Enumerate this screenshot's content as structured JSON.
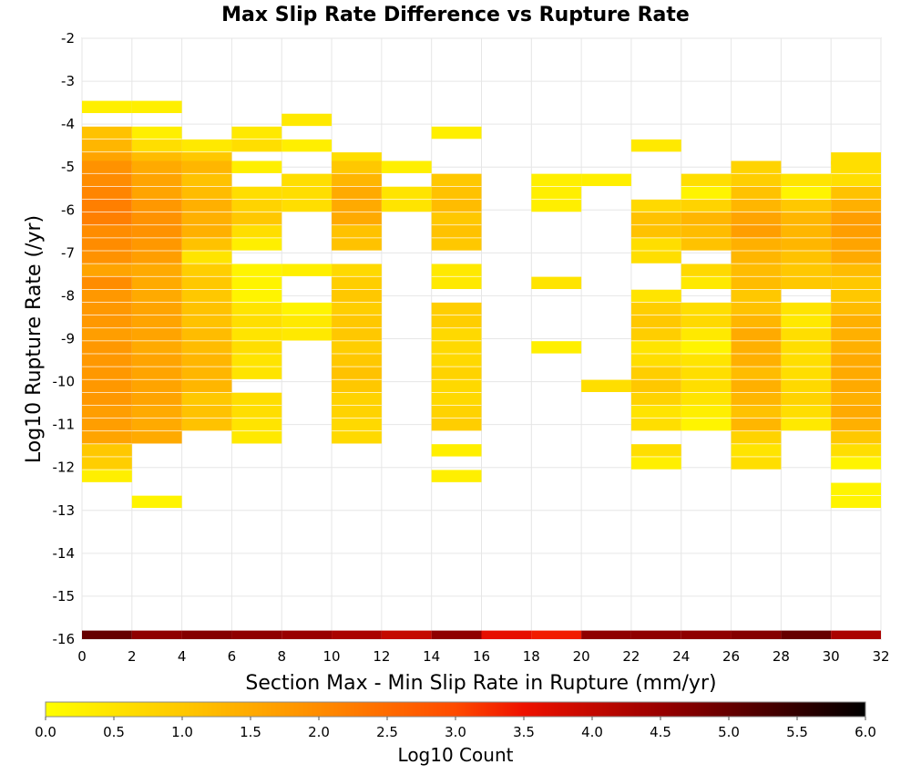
{
  "chart_data": {
    "type": "heatmap",
    "title": "Max Slip Rate Difference vs Rupture Rate",
    "xlabel": "Section Max - Min Slip Rate in Rupture (mm/yr)",
    "ylabel": "Log10 Rupture Rate (/yr)",
    "xlim": [
      0,
      32
    ],
    "ylim": [
      -16,
      -2
    ],
    "x_ticks": [
      0,
      2,
      4,
      6,
      8,
      10,
      12,
      14,
      16,
      18,
      20,
      22,
      24,
      26,
      28,
      30,
      32
    ],
    "y_ticks": [
      -2,
      -3,
      -4,
      -5,
      -6,
      -7,
      -8,
      -9,
      -10,
      -11,
      -12,
      -13,
      -14,
      -15,
      -16
    ],
    "x_tick_labels": [
      "0",
      "2",
      "4",
      "6",
      "8",
      "10",
      "12",
      "14",
      "16",
      "18",
      "20",
      "22",
      "24",
      "26",
      "28",
      "30",
      "32"
    ],
    "y_tick_labels": [
      "-2",
      "-3",
      "-4",
      "-5",
      "-6",
      "-7",
      "-8",
      "-9",
      "-10",
      "-11",
      "-12",
      "-13",
      "-14",
      "-15",
      "-16"
    ],
    "x_bin_width": 2,
    "y_bin_height": 0.285,
    "y_bin_start": -16,
    "grid": true,
    "colorbar": {
      "label": "Log10 Count",
      "range": [
        0,
        6
      ],
      "ticks": [
        "0.0",
        "0.5",
        "1.0",
        "1.5",
        "2.0",
        "2.5",
        "3.0",
        "3.5",
        "4.0",
        "4.5",
        "5.0",
        "5.5",
        "6.0"
      ],
      "colors": [
        "#ffff00",
        "#ffc800",
        "#ff8c00",
        "#ff5500",
        "#ee1100",
        "#990000",
        "#000000"
      ]
    },
    "marginal_row": [
      5.0,
      4.6,
      4.7,
      4.6,
      4.5,
      4.3,
      4.0,
      4.6,
      3.6,
      3.4,
      4.6,
      4.6,
      4.6,
      4.7,
      5.0,
      4.3
    ],
    "columns": [
      [
        [
          -3.6,
          0.3
        ],
        [
          -4.2,
          1.1
        ],
        [
          -4.5,
          1.3
        ],
        [
          -4.8,
          1.6
        ],
        [
          -5.0,
          1.9
        ],
        [
          -5.3,
          2.0
        ],
        [
          -5.6,
          2.1
        ],
        [
          -5.9,
          2.2
        ],
        [
          -6.2,
          2.2
        ],
        [
          -6.5,
          2.0
        ],
        [
          -6.8,
          2.0
        ],
        [
          -7.1,
          1.9
        ],
        [
          -7.4,
          1.6
        ],
        [
          -7.7,
          2.0
        ],
        [
          -8.0,
          1.8
        ],
        [
          -8.3,
          1.8
        ],
        [
          -8.6,
          1.8
        ],
        [
          -8.9,
          1.7
        ],
        [
          -9.2,
          1.8
        ],
        [
          -9.5,
          1.8
        ],
        [
          -9.8,
          1.8
        ],
        [
          -10.1,
          1.8
        ],
        [
          -10.4,
          1.8
        ],
        [
          -10.7,
          1.7
        ],
        [
          -11.0,
          1.7
        ],
        [
          -11.3,
          1.6
        ],
        [
          -11.6,
          1.0
        ],
        [
          -11.9,
          0.9
        ],
        [
          -12.2,
          0.3
        ]
      ],
      [
        [
          -3.6,
          0.3
        ],
        [
          -4.2,
          0.3
        ],
        [
          -4.5,
          0.6
        ],
        [
          -4.8,
          1.2
        ],
        [
          -5.0,
          1.5
        ],
        [
          -5.3,
          1.6
        ],
        [
          -5.6,
          1.6
        ],
        [
          -5.9,
          1.8
        ],
        [
          -6.2,
          1.9
        ],
        [
          -6.5,
          1.9
        ],
        [
          -6.8,
          1.8
        ],
        [
          -7.1,
          1.7
        ],
        [
          -7.4,
          1.5
        ],
        [
          -7.7,
          1.5
        ],
        [
          -8.0,
          1.5
        ],
        [
          -8.3,
          1.6
        ],
        [
          -8.6,
          1.6
        ],
        [
          -8.9,
          1.6
        ],
        [
          -9.2,
          1.5
        ],
        [
          -9.5,
          1.6
        ],
        [
          -9.8,
          1.6
        ],
        [
          -10.1,
          1.6
        ],
        [
          -10.4,
          1.6
        ],
        [
          -10.7,
          1.5
        ],
        [
          -11.0,
          1.5
        ],
        [
          -11.3,
          1.5
        ],
        [
          -12.8,
          0.2
        ]
      ],
      [
        [
          -4.5,
          0.4
        ],
        [
          -4.8,
          1.0
        ],
        [
          -5.0,
          1.3
        ],
        [
          -5.3,
          1.1
        ],
        [
          -5.6,
          1.2
        ],
        [
          -5.9,
          1.4
        ],
        [
          -6.2,
          1.4
        ],
        [
          -6.5,
          1.4
        ],
        [
          -6.8,
          1.1
        ],
        [
          -7.1,
          0.5
        ],
        [
          -7.4,
          0.9
        ],
        [
          -7.7,
          1.0
        ],
        [
          -8.0,
          1.0
        ],
        [
          -8.3,
          1.1
        ],
        [
          -8.6,
          1.1
        ],
        [
          -8.9,
          1.2
        ],
        [
          -9.2,
          1.2
        ],
        [
          -9.5,
          1.3
        ],
        [
          -9.8,
          1.3
        ],
        [
          -10.1,
          1.3
        ],
        [
          -10.4,
          1.0
        ],
        [
          -10.7,
          1.1
        ],
        [
          -11.0,
          1.1
        ]
      ],
      [
        [
          -4.2,
          0.4
        ],
        [
          -4.5,
          0.6
        ],
        [
          -5.0,
          0.3
        ],
        [
          -5.6,
          0.6
        ],
        [
          -5.9,
          0.8
        ],
        [
          -6.2,
          1.0
        ],
        [
          -6.5,
          0.6
        ],
        [
          -6.8,
          0.3
        ],
        [
          -7.4,
          0.2
        ],
        [
          -7.7,
          0.2
        ],
        [
          -8.0,
          0.2
        ],
        [
          -8.3,
          0.5
        ],
        [
          -8.6,
          0.6
        ],
        [
          -8.9,
          0.5
        ],
        [
          -9.2,
          0.6
        ],
        [
          -9.5,
          0.5
        ],
        [
          -9.8,
          0.5
        ],
        [
          -10.4,
          0.6
        ],
        [
          -10.7,
          0.6
        ],
        [
          -11.0,
          0.5
        ],
        [
          -11.3,
          0.4
        ]
      ],
      [
        [
          -3.9,
          0.4
        ],
        [
          -4.5,
          0.3
        ],
        [
          -5.3,
          0.6
        ],
        [
          -5.6,
          0.6
        ],
        [
          -5.9,
          0.6
        ],
        [
          -7.4,
          0.3
        ],
        [
          -8.3,
          0.2
        ],
        [
          -8.6,
          0.4
        ],
        [
          -8.9,
          0.4
        ]
      ],
      [
        [
          -4.8,
          0.6
        ],
        [
          -5.0,
          1.0
        ],
        [
          -5.3,
          1.3
        ],
        [
          -5.6,
          1.5
        ],
        [
          -5.9,
          1.5
        ],
        [
          -6.2,
          1.5
        ],
        [
          -6.5,
          1.1
        ],
        [
          -6.8,
          1.1
        ],
        [
          -7.4,
          0.7
        ],
        [
          -7.7,
          0.9
        ],
        [
          -8.0,
          1.0
        ],
        [
          -8.3,
          0.9
        ],
        [
          -8.6,
          1.0
        ],
        [
          -8.9,
          1.0
        ],
        [
          -9.2,
          0.9
        ],
        [
          -9.5,
          1.0
        ],
        [
          -9.8,
          1.1
        ],
        [
          -10.1,
          1.0
        ],
        [
          -10.4,
          0.8
        ],
        [
          -10.7,
          0.8
        ],
        [
          -11.0,
          0.7
        ],
        [
          -11.3,
          0.7
        ]
      ],
      [
        [
          -5.0,
          0.3
        ],
        [
          -5.6,
          0.5
        ],
        [
          -5.9,
          0.5
        ]
      ],
      [
        [
          -4.2,
          0.3
        ],
        [
          -5.3,
          1.0
        ],
        [
          -5.6,
          1.1
        ],
        [
          -5.9,
          1.2
        ],
        [
          -6.2,
          1.0
        ],
        [
          -6.5,
          1.1
        ],
        [
          -6.8,
          1.0
        ],
        [
          -7.4,
          0.4
        ],
        [
          -7.7,
          0.4
        ],
        [
          -8.3,
          0.9
        ],
        [
          -8.6,
          0.9
        ],
        [
          -8.9,
          0.7
        ],
        [
          -9.2,
          0.7
        ],
        [
          -9.5,
          0.7
        ],
        [
          -9.8,
          0.8
        ],
        [
          -10.1,
          0.7
        ],
        [
          -10.4,
          0.7
        ],
        [
          -10.7,
          0.8
        ],
        [
          -11.0,
          0.9
        ],
        [
          -11.6,
          0.3
        ],
        [
          -12.2,
          0.3
        ]
      ],
      [],
      [
        [
          -5.3,
          0.3
        ],
        [
          -5.6,
          0.3
        ],
        [
          -5.9,
          0.3
        ],
        [
          -7.7,
          0.5
        ],
        [
          -9.2,
          0.3
        ]
      ],
      [
        [
          -5.3,
          0.3
        ],
        [
          -10.1,
          0.6
        ]
      ],
      [
        [
          -4.5,
          0.4
        ],
        [
          -5.9,
          0.7
        ],
        [
          -6.2,
          1.1
        ],
        [
          -6.5,
          1.1
        ],
        [
          -6.8,
          0.6
        ],
        [
          -7.1,
          0.6
        ],
        [
          -8.0,
          0.5
        ],
        [
          -8.3,
          0.9
        ],
        [
          -8.6,
          1.0
        ],
        [
          -8.9,
          0.9
        ],
        [
          -9.2,
          0.5
        ],
        [
          -9.5,
          0.6
        ],
        [
          -9.8,
          0.9
        ],
        [
          -10.1,
          1.0
        ],
        [
          -10.4,
          0.8
        ],
        [
          -10.7,
          0.5
        ],
        [
          -11.0,
          0.6
        ],
        [
          -11.6,
          0.6
        ],
        [
          -11.9,
          0.3
        ]
      ],
      [
        [
          -5.3,
          0.6
        ],
        [
          -5.6,
          0.2
        ],
        [
          -5.9,
          0.8
        ],
        [
          -6.2,
          1.3
        ],
        [
          -6.5,
          1.2
        ],
        [
          -6.8,
          1.1
        ],
        [
          -7.4,
          0.7
        ],
        [
          -7.7,
          0.4
        ],
        [
          -8.3,
          0.6
        ],
        [
          -8.6,
          0.7
        ],
        [
          -8.9,
          0.4
        ],
        [
          -9.2,
          0.2
        ],
        [
          -9.5,
          0.5
        ],
        [
          -9.8,
          0.6
        ],
        [
          -10.1,
          0.6
        ],
        [
          -10.4,
          0.5
        ],
        [
          -10.7,
          0.3
        ],
        [
          -11.0,
          0.2
        ]
      ],
      [
        [
          -5.0,
          0.8
        ],
        [
          -5.3,
          0.9
        ],
        [
          -5.6,
          1.1
        ],
        [
          -5.9,
          1.3
        ],
        [
          -6.2,
          1.6
        ],
        [
          -6.5,
          1.7
        ],
        [
          -6.8,
          1.4
        ],
        [
          -7.1,
          1.3
        ],
        [
          -7.4,
          1.2
        ],
        [
          -7.7,
          1.2
        ],
        [
          -8.0,
          1.0
        ],
        [
          -8.3,
          1.1
        ],
        [
          -8.6,
          1.3
        ],
        [
          -8.9,
          1.5
        ],
        [
          -9.2,
          1.4
        ],
        [
          -9.5,
          1.4
        ],
        [
          -9.8,
          1.2
        ],
        [
          -10.1,
          1.4
        ],
        [
          -10.4,
          1.3
        ],
        [
          -10.7,
          1.1
        ],
        [
          -11.0,
          1.3
        ],
        [
          -11.3,
          0.8
        ],
        [
          -11.6,
          0.5
        ],
        [
          -11.9,
          0.6
        ]
      ],
      [
        [
          -5.3,
          0.5
        ],
        [
          -5.6,
          0.2
        ],
        [
          -5.9,
          1.0
        ],
        [
          -6.2,
          1.3
        ],
        [
          -6.5,
          1.3
        ],
        [
          -6.8,
          1.3
        ],
        [
          -7.1,
          1.1
        ],
        [
          -7.4,
          1.0
        ],
        [
          -7.7,
          1.0
        ],
        [
          -8.3,
          0.5
        ],
        [
          -8.6,
          0.4
        ],
        [
          -8.9,
          0.6
        ],
        [
          -9.2,
          0.6
        ],
        [
          -9.5,
          0.6
        ],
        [
          -9.8,
          0.6
        ],
        [
          -10.1,
          0.7
        ],
        [
          -10.4,
          0.8
        ],
        [
          -10.7,
          0.6
        ],
        [
          -11.0,
          0.4
        ]
      ],
      [
        [
          -4.8,
          0.6
        ],
        [
          -5.0,
          0.6
        ],
        [
          -5.3,
          0.6
        ],
        [
          -5.6,
          1.1
        ],
        [
          -5.9,
          1.4
        ],
        [
          -6.2,
          1.7
        ],
        [
          -6.5,
          1.7
        ],
        [
          -6.8,
          1.6
        ],
        [
          -7.1,
          1.5
        ],
        [
          -7.4,
          1.2
        ],
        [
          -7.7,
          1.0
        ],
        [
          -8.0,
          1.0
        ],
        [
          -8.3,
          1.2
        ],
        [
          -8.6,
          1.4
        ],
        [
          -8.9,
          1.4
        ],
        [
          -9.2,
          1.4
        ],
        [
          -9.5,
          1.5
        ],
        [
          -9.8,
          1.5
        ],
        [
          -10.1,
          1.5
        ],
        [
          -10.4,
          1.4
        ],
        [
          -10.7,
          1.5
        ],
        [
          -11.0,
          1.4
        ],
        [
          -11.3,
          1.0
        ],
        [
          -11.6,
          0.6
        ],
        [
          -11.9,
          0.2
        ],
        [
          -12.5,
          0.2
        ],
        [
          -12.8,
          0.2
        ]
      ]
    ]
  }
}
